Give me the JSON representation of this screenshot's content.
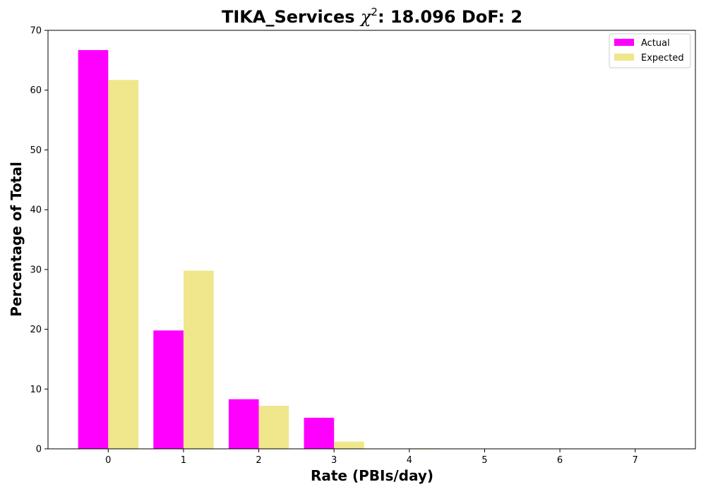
{
  "chart_data": {
    "type": "bar",
    "title_prefix": "TIKA_Services ",
    "title_symbol": "χ",
    "title_superscript": "2",
    "title_suffix": ": 18.096 DoF: 2",
    "xlabel": "Rate (PBIs/day)",
    "ylabel": "Percentage of Total",
    "categories": [
      "0",
      "1",
      "2",
      "3",
      "4",
      "5",
      "6",
      "7"
    ],
    "series": [
      {
        "name": "Actual",
        "color": "#ff00ff",
        "values": [
          66.7,
          19.8,
          8.3,
          5.2,
          0,
          0,
          0,
          0
        ]
      },
      {
        "name": "Expected",
        "color": "#f0e68c",
        "values": [
          61.7,
          29.8,
          7.2,
          1.2,
          0.1,
          0,
          0,
          0
        ]
      }
    ],
    "xlim": [
      -0.8,
      7.8
    ],
    "ylim": [
      0,
      70
    ],
    "yticks": [
      0,
      10,
      20,
      30,
      40,
      50,
      60,
      70
    ],
    "legend_position": "top-right",
    "grid": false
  }
}
